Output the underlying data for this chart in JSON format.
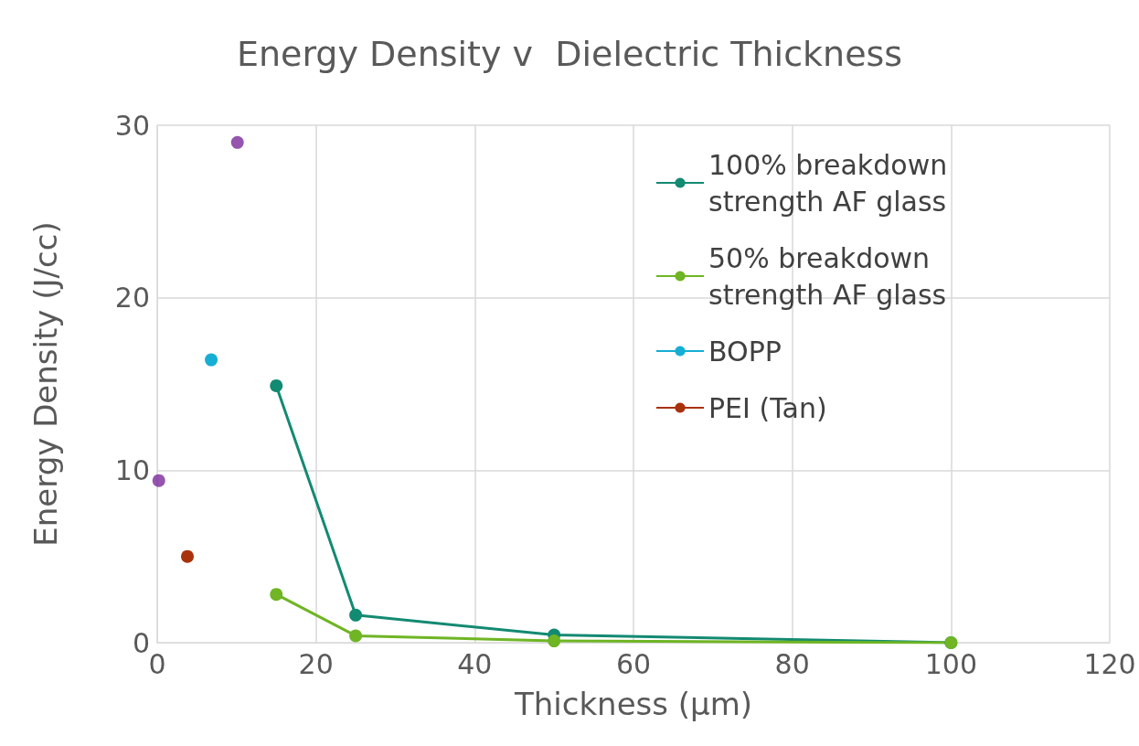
{
  "chart_data": {
    "type": "line",
    "title": "Energy Density v  Dielectric Thickness",
    "xlabel": "Thickness (µm)",
    "ylabel": "Energy Density (J/cc)",
    "xlim": [
      0,
      120
    ],
    "xticks": [
      0,
      20,
      40,
      60,
      80,
      100,
      120
    ],
    "ylim": [
      0,
      30
    ],
    "yticks": [
      0,
      10,
      20,
      30
    ],
    "grid": true,
    "legend": "top right",
    "marker": "circle",
    "series": [
      {
        "name": "100% breakdown strength AF glass",
        "color": "#138a72",
        "x": [
          15,
          25,
          50,
          100
        ],
        "values": [
          14.9,
          1.6,
          0.45,
          0
        ]
      },
      {
        "name": "50% breakdown strength AF glass",
        "color": "#6fb524",
        "x": [
          15,
          25,
          50,
          100
        ],
        "values": [
          2.8,
          0.4,
          0.1,
          0
        ]
      },
      {
        "name": "BOPP",
        "color": "#16aed4",
        "x": [
          6.8
        ],
        "values": [
          16.4
        ]
      },
      {
        "name": "PEI (Tan)",
        "color": "#a8320c",
        "x": [
          3.8
        ],
        "values": [
          5.0
        ]
      },
      {
        "type": "scatter",
        "color": "#7a2a9a",
        "x": [
          0.2,
          10.1
        ],
        "values": [
          9.4,
          29.0
        ]
      }
    ]
  }
}
